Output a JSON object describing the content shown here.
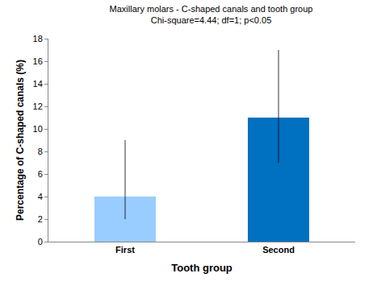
{
  "chart_data": {
    "type": "bar",
    "title": "Maxillary molars - C-shaped canals and tooth group",
    "subtitle": "Chi-square=4.44; df=1; p<0.05",
    "x_label": "Tooth group",
    "y_label": "Percentage of C-shaped canals (%)",
    "categories": [
      "First",
      "Second"
    ],
    "values": [
      4,
      11
    ],
    "error_lower": [
      2,
      7
    ],
    "error_upper": [
      9,
      17
    ],
    "colors": [
      "#99ccff",
      "#0070c0"
    ],
    "ylim": [
      0,
      18
    ],
    "yticks": [
      0,
      2,
      4,
      6,
      8,
      10,
      12,
      14,
      16,
      18
    ],
    "grid": false
  }
}
